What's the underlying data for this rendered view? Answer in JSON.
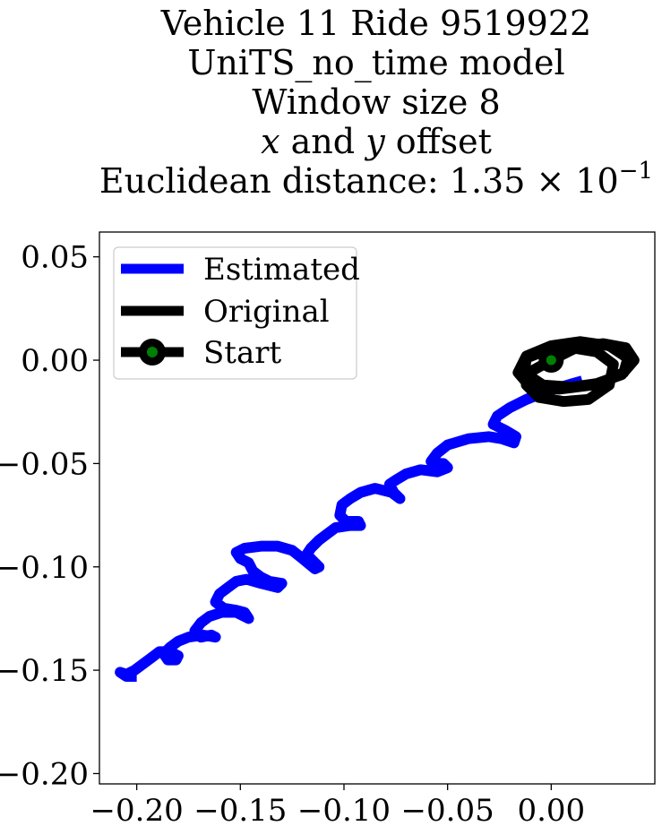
{
  "chart_data": {
    "type": "line",
    "title_lines": [
      "Vehicle 11 Ride 9519922",
      "UniTS_no_time model",
      "Window size 8",
      "x and y offset",
      "Euclidean distance: 1.35 × 10"
    ],
    "title_italic_parts": {
      "x": "x",
      "and": "and",
      "y": "y",
      "offset": "offset"
    },
    "title_exponent": "−1",
    "xlim": [
      -0.218,
      0.05
    ],
    "ylim": [
      -0.205,
      0.062
    ],
    "xticks": [
      -0.2,
      -0.15,
      -0.1,
      -0.05,
      0.0
    ],
    "xtick_labels": [
      "−0.20",
      "−0.15",
      "−0.10",
      "−0.05",
      "0.00"
    ],
    "yticks": [
      0.05,
      0.0,
      -0.05,
      -0.1,
      -0.15,
      -0.2
    ],
    "ytick_labels": [
      "0.05",
      "0.00",
      "−0.05",
      "−0.10",
      "−0.15",
      "−0.20"
    ],
    "legend": {
      "position": "upper-left",
      "entries": [
        "Estimated",
        "Original",
        "Start"
      ]
    },
    "colors": {
      "estimated": "#0000ff",
      "original": "#000000",
      "start_fill": "#008000"
    },
    "series": [
      {
        "name": "Estimated",
        "color": "#0000ff",
        "points": [
          [
            0.015,
            -0.01
          ],
          [
            0.008,
            -0.012
          ],
          [
            -0.002,
            -0.015
          ],
          [
            -0.012,
            -0.019
          ],
          [
            -0.02,
            -0.023
          ],
          [
            -0.026,
            -0.027
          ],
          [
            -0.028,
            -0.031
          ],
          [
            -0.022,
            -0.034
          ],
          [
            -0.017,
            -0.037
          ],
          [
            -0.018,
            -0.04
          ],
          [
            -0.024,
            -0.038
          ],
          [
            -0.03,
            -0.037
          ],
          [
            -0.04,
            -0.038
          ],
          [
            -0.05,
            -0.041
          ],
          [
            -0.055,
            -0.045
          ],
          [
            -0.058,
            -0.049
          ],
          [
            -0.057,
            -0.05
          ],
          [
            -0.052,
            -0.05
          ],
          [
            -0.05,
            -0.052
          ],
          [
            -0.055,
            -0.054
          ],
          [
            -0.063,
            -0.053
          ],
          [
            -0.07,
            -0.055
          ],
          [
            -0.075,
            -0.058
          ],
          [
            -0.078,
            -0.06
          ],
          [
            -0.076,
            -0.064
          ],
          [
            -0.073,
            -0.067
          ],
          [
            -0.077,
            -0.064
          ],
          [
            -0.085,
            -0.062
          ],
          [
            -0.092,
            -0.064
          ],
          [
            -0.097,
            -0.067
          ],
          [
            -0.101,
            -0.07
          ],
          [
            -0.102,
            -0.075
          ],
          [
            -0.099,
            -0.078
          ],
          [
            -0.093,
            -0.078
          ],
          [
            -0.092,
            -0.08
          ],
          [
            -0.097,
            -0.08
          ],
          [
            -0.104,
            -0.081
          ],
          [
            -0.108,
            -0.084
          ],
          [
            -0.112,
            -0.087
          ],
          [
            -0.116,
            -0.091
          ],
          [
            -0.118,
            -0.094
          ],
          [
            -0.115,
            -0.097
          ],
          [
            -0.112,
            -0.1
          ],
          [
            -0.114,
            -0.101
          ],
          [
            -0.12,
            -0.096
          ],
          [
            -0.125,
            -0.092
          ],
          [
            -0.132,
            -0.09
          ],
          [
            -0.14,
            -0.09
          ],
          [
            -0.148,
            -0.091
          ],
          [
            -0.152,
            -0.093
          ],
          [
            -0.15,
            -0.096
          ],
          [
            -0.146,
            -0.098
          ],
          [
            -0.144,
            -0.102
          ],
          [
            -0.14,
            -0.105
          ],
          [
            -0.136,
            -0.107
          ],
          [
            -0.13,
            -0.108
          ],
          [
            -0.132,
            -0.11
          ],
          [
            -0.14,
            -0.108
          ],
          [
            -0.147,
            -0.106
          ],
          [
            -0.152,
            -0.107
          ],
          [
            -0.156,
            -0.11
          ],
          [
            -0.16,
            -0.113
          ],
          [
            -0.162,
            -0.117
          ],
          [
            -0.158,
            -0.12
          ],
          [
            -0.152,
            -0.121
          ],
          [
            -0.148,
            -0.122
          ],
          [
            -0.146,
            -0.125
          ],
          [
            -0.152,
            -0.122
          ],
          [
            -0.159,
            -0.122
          ],
          [
            -0.165,
            -0.124
          ],
          [
            -0.169,
            -0.127
          ],
          [
            -0.172,
            -0.131
          ],
          [
            -0.169,
            -0.134
          ],
          [
            -0.164,
            -0.133
          ],
          [
            -0.162,
            -0.134
          ],
          [
            -0.168,
            -0.133
          ],
          [
            -0.175,
            -0.134
          ],
          [
            -0.18,
            -0.136
          ],
          [
            -0.184,
            -0.139
          ],
          [
            -0.187,
            -0.142
          ],
          [
            -0.185,
            -0.145
          ],
          [
            -0.181,
            -0.145
          ],
          [
            -0.18,
            -0.143
          ],
          [
            -0.184,
            -0.141
          ],
          [
            -0.189,
            -0.141
          ],
          [
            -0.193,
            -0.144
          ],
          [
            -0.197,
            -0.147
          ],
          [
            -0.201,
            -0.15
          ],
          [
            -0.205,
            -0.152
          ],
          [
            -0.208,
            -0.151
          ],
          [
            -0.205,
            -0.153
          ],
          [
            -0.2,
            -0.153
          ]
        ]
      },
      {
        "name": "Original",
        "color": "#000000",
        "points": [
          [
            0.0,
            0.0
          ],
          [
            0.012,
            0.006
          ],
          [
            0.025,
            0.008
          ],
          [
            0.036,
            0.006
          ],
          [
            0.04,
            0.0
          ],
          [
            0.034,
            -0.007
          ],
          [
            0.02,
            -0.012
          ],
          [
            0.004,
            -0.014
          ],
          [
            -0.01,
            -0.013
          ],
          [
            -0.016,
            -0.006
          ],
          [
            -0.012,
            0.002
          ],
          [
            0.0,
            0.007
          ],
          [
            0.014,
            0.009
          ],
          [
            0.028,
            0.007
          ],
          [
            0.037,
            0.001
          ],
          [
            0.035,
            -0.006
          ],
          [
            0.024,
            -0.011
          ],
          [
            0.01,
            -0.013
          ],
          [
            -0.004,
            -0.012
          ],
          [
            -0.013,
            -0.006
          ],
          [
            -0.012,
            0.001
          ],
          [
            -0.002,
            0.005
          ],
          [
            0.01,
            0.006
          ],
          [
            0.022,
            0.004
          ],
          [
            0.03,
            -0.002
          ],
          [
            0.028,
            -0.012
          ],
          [
            0.018,
            -0.019
          ],
          [
            0.006,
            -0.02
          ],
          [
            -0.006,
            -0.018
          ],
          [
            -0.012,
            -0.012
          ],
          [
            -0.009,
            -0.005
          ],
          [
            0.0,
            0.0
          ]
        ]
      }
    ],
    "start_point": {
      "x": 0.0,
      "y": 0.0
    }
  }
}
